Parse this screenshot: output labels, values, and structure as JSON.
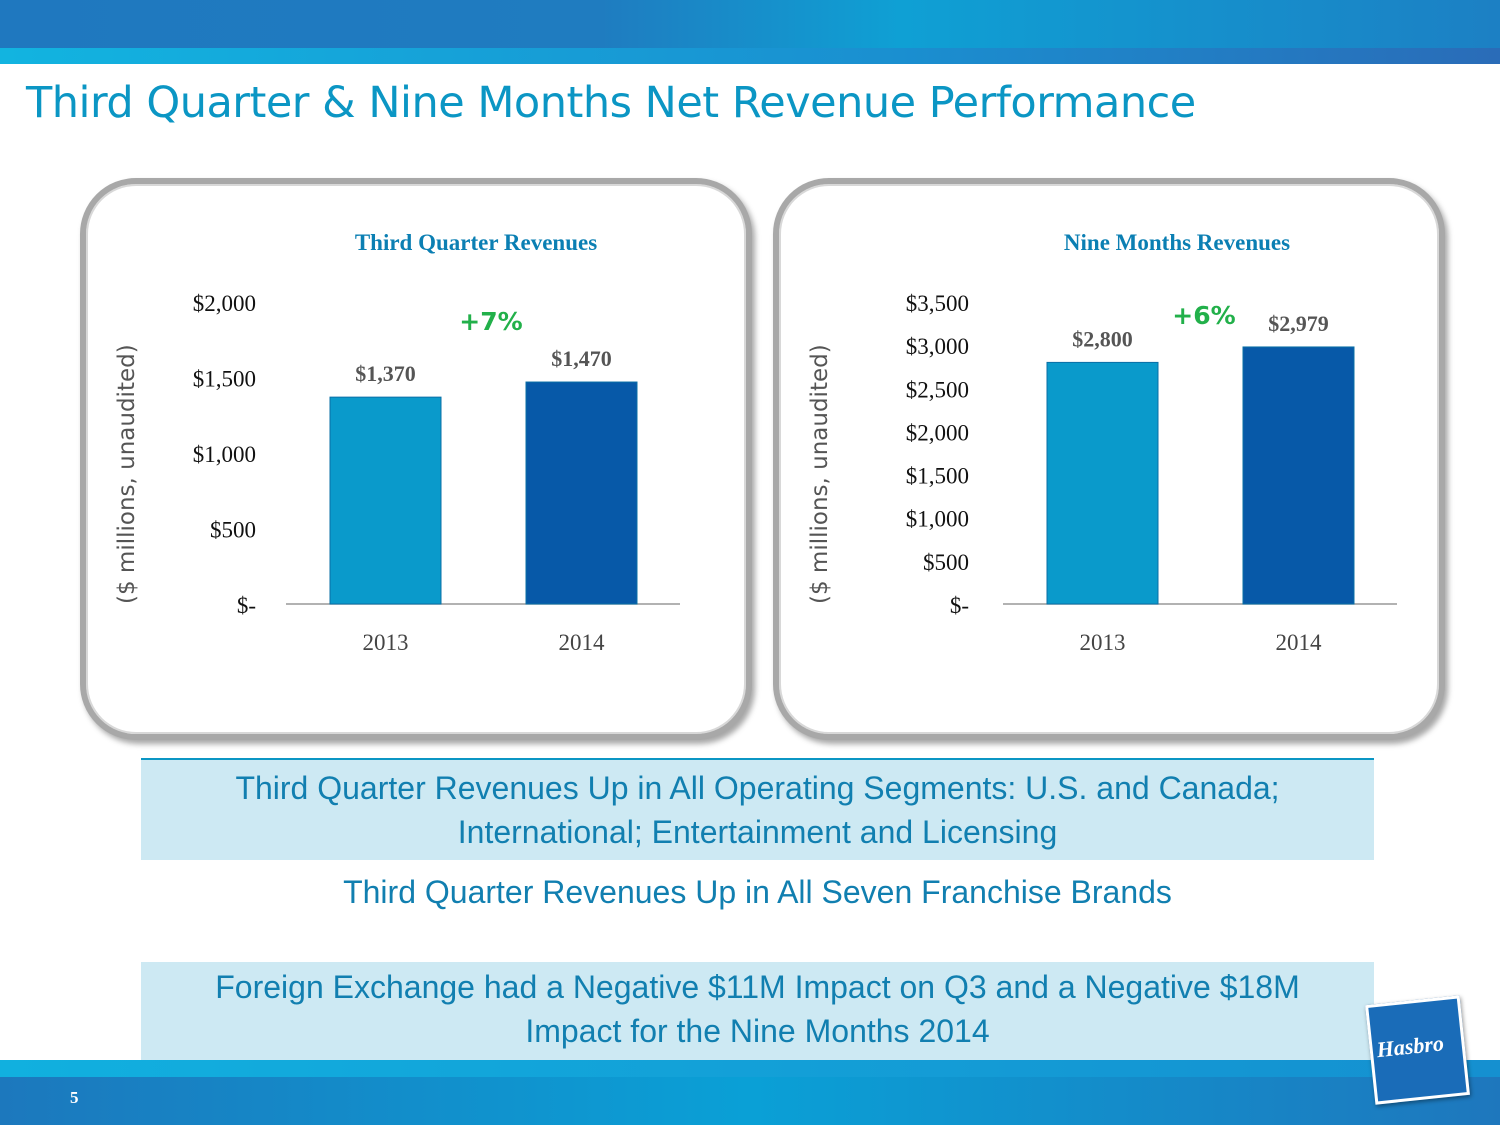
{
  "title": "Third Quarter & Nine Months Net Revenue Performance",
  "chart_data": [
    {
      "type": "bar",
      "title": "Third Quarter Revenues",
      "ylabel": "($ millions, unaudited)",
      "categories": [
        "2013",
        "2014"
      ],
      "values": [
        1370,
        1470
      ],
      "value_labels": [
        "$1,370",
        "$1,470"
      ],
      "ylim": [
        0,
        2000
      ],
      "yticks": [
        0,
        500,
        1000,
        1500,
        2000
      ],
      "ytick_labels": [
        "$-",
        "$500",
        "$1,000",
        "$1,500",
        "$2,000"
      ],
      "annotation": "+7%",
      "colors": [
        "#0a9acb",
        "#0759a8"
      ]
    },
    {
      "type": "bar",
      "title": "Nine Months Revenues",
      "ylabel": "($ millions, unaudited)",
      "categories": [
        "2013",
        "2014"
      ],
      "values": [
        2800,
        2979
      ],
      "value_labels": [
        "$2,800",
        "$2,979"
      ],
      "ylim": [
        0,
        3500
      ],
      "yticks": [
        0,
        500,
        1000,
        1500,
        2000,
        2500,
        3000,
        3500
      ],
      "ytick_labels": [
        "$-",
        "$500",
        "$1,000",
        "$1,500",
        "$2,000",
        "$2,500",
        "$3,000",
        "$3,500"
      ],
      "annotation": "+6%",
      "colors": [
        "#0a9acb",
        "#0759a8"
      ]
    }
  ],
  "bullets": [
    "Third Quarter Revenues Up in All Operating Segments:  U.S. and Canada; International; Entertainment and Licensing",
    "Third Quarter Revenues Up in All Seven Franchise Brands",
    "Foreign Exchange had a Negative $11M Impact on Q3 and a Negative $18M Impact for the Nine Months 2014"
  ],
  "page_number": "5",
  "logo_text": "Hasbro"
}
